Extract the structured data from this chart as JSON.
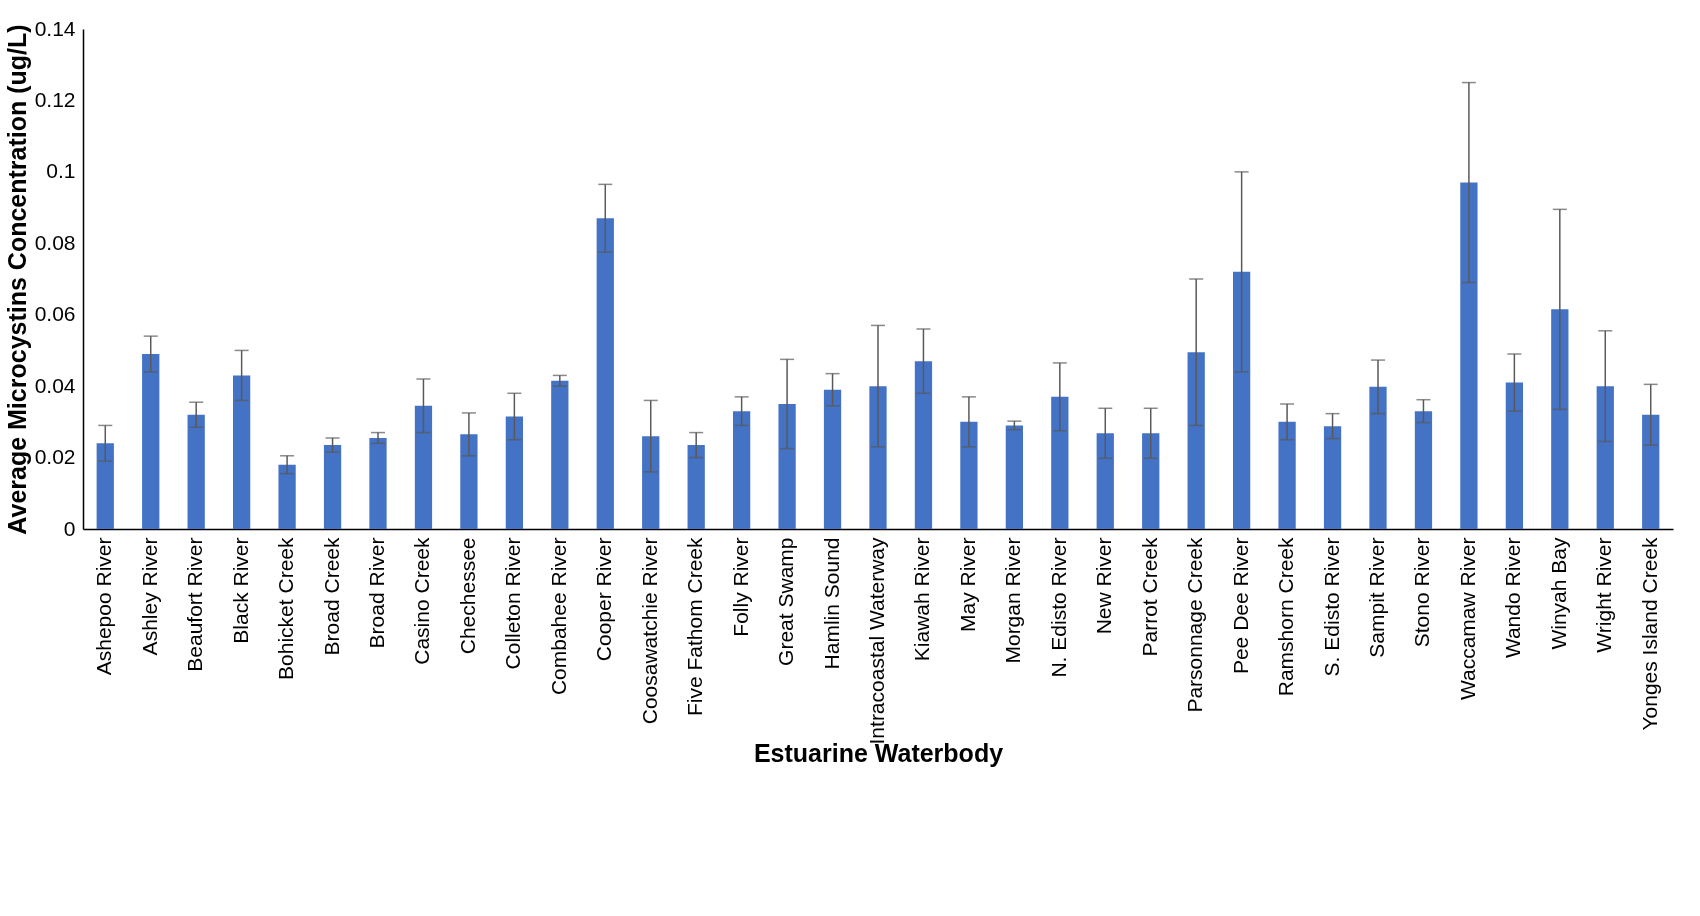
{
  "chart_data": {
    "type": "bar",
    "xlabel": "Estuarine Waterbody",
    "ylabel": "Average Microcystins Concentration (ug/L)",
    "categories": [
      "Ashepoo River",
      "Ashley River",
      "Beaufort River",
      "Black River",
      "Bohicket Creek",
      "Broad Creek",
      "Broad River",
      "Casino Creek",
      "Chechessee",
      "Colleton River",
      "Combahee River",
      "Cooper River",
      "Coosawatchie River",
      "Five Fathom Creek",
      "Folly River",
      "Great Swamp",
      "Hamlin Sound",
      "Intracoastal Waterway",
      "Kiawah River",
      "May River",
      "Morgan River",
      "N. Edisto River",
      "New River",
      "Parrot Creek",
      "Parsonnage Creek",
      "Pee Dee River",
      "Ramshorn Creek",
      "S. Edisto River",
      "Sampit River",
      "Stono River",
      "Waccamaw River",
      "Wando River",
      "Winyah Bay",
      "Wright River",
      "Yonges Island Creek"
    ],
    "values": [
      0.024,
      0.049,
      0.032,
      0.043,
      0.018,
      0.0235,
      0.0255,
      0.0345,
      0.0265,
      0.0315,
      0.0415,
      0.087,
      0.026,
      0.0235,
      0.033,
      0.035,
      0.039,
      0.04,
      0.047,
      0.03,
      0.029,
      0.037,
      0.0268,
      0.0268,
      0.0495,
      0.072,
      0.03,
      0.0288,
      0.0398,
      0.033,
      0.097,
      0.041,
      0.0615,
      0.04,
      0.032
    ],
    "errors": [
      0.005,
      0.005,
      0.0035,
      0.007,
      0.0025,
      0.002,
      0.0015,
      0.0075,
      0.006,
      0.0065,
      0.0015,
      0.0095,
      0.01,
      0.0035,
      0.004,
      0.0125,
      0.0045,
      0.017,
      0.009,
      0.007,
      0.0012,
      0.0095,
      0.007,
      0.007,
      0.0205,
      0.028,
      0.005,
      0.0035,
      0.0075,
      0.0032,
      0.028,
      0.008,
      0.028,
      0.0155,
      0.0085
    ],
    "color": "#4472c4",
    "ylim": [
      0,
      0.14
    ],
    "yticks": [
      0,
      0.02,
      0.04,
      0.06,
      0.08,
      0.1,
      0.12,
      0.14
    ],
    "grid": false
  }
}
